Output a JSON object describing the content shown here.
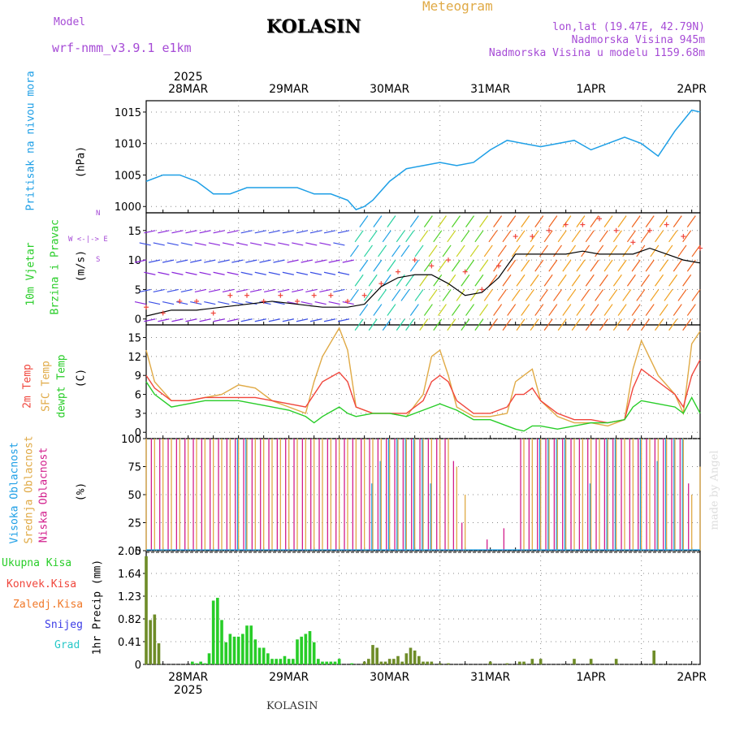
{
  "header": {
    "model_label": "Model",
    "model_name": "wrf-nmm_v3.9.1 e1km",
    "title": "KOLASIN",
    "meteogram_label": "Meteogram",
    "location": "lon,lat (19.47E, 42.79N)",
    "elevation": "Nadmorska Visina 945m",
    "model_elevation": "Nadmorska Visina u modelu 1159.68m",
    "bottom_title": "KOLASIN",
    "watermark": "made by Angel"
  },
  "colors": {
    "pressure": "#1e9fe6",
    "temp2m": "#f0463c",
    "sfc_temp": "#e0aa46",
    "dewpt": "#28cd28",
    "high_cloud": "#1e9fe6",
    "mid_cloud": "#e0aa46",
    "low_cloud": "#d21e8c",
    "total_precip": "#28cd28",
    "conv_precip": "#f0463c",
    "frz_precip": "#f07828",
    "snow": "#3c3ce6",
    "graupel": "#28c8c8",
    "gust": "#f0463c",
    "wind_speed_line": "#000000",
    "label_purple": "#a64bd6"
  },
  "time_axis": {
    "top_year": "2025",
    "bottom_year": "2025",
    "days": [
      "28MAR",
      "29MAR",
      "30MAR",
      "31MAR",
      "1APR",
      "2APR"
    ],
    "start_hour": 14,
    "end_hour": 146
  },
  "labels": {
    "pressure": [
      "Pritisak na nivou mora",
      "(hPa)"
    ],
    "wind": [
      "10m Vjetar",
      "Brzina i Pravac",
      "(m/s)"
    ],
    "wind_compass": [
      "N",
      "W <-|-> E",
      "S"
    ],
    "temp": [
      "2m Temp",
      "SFC Temp",
      "dewpt Temp",
      "(C)"
    ],
    "cloud": [
      "Visoka Oblacnost",
      "Srednja Oblacnost",
      "Niska Oblacnost",
      "(%)"
    ],
    "precip_unit": "1hr Precip (mm)",
    "precip_legend": [
      "Ukupna Kisa",
      "Konvek.Kisa",
      "Zaledj.Kisa",
      "Snijeg",
      "Grad"
    ]
  },
  "chart_data": [
    {
      "type": "line",
      "name": "pressure",
      "ylabel": "Pritisak na nivou mora (hPa)",
      "ylim": [
        999,
        1016.8
      ],
      "yticks": [
        1000,
        1005,
        1010,
        1015
      ],
      "grid": true,
      "series": [
        {
          "name": "Pritisak na nivou mora",
          "x": [
            14,
            18,
            22,
            26,
            30,
            34,
            38,
            42,
            46,
            50,
            54,
            58,
            62,
            64,
            66,
            68,
            72,
            76,
            80,
            84,
            88,
            92,
            96,
            100,
            104,
            108,
            112,
            116,
            120,
            124,
            128,
            132,
            136,
            140,
            144,
            146
          ],
          "values": [
            1004,
            1005,
            1005,
            1004,
            1002,
            1002,
            1003,
            1003,
            1003,
            1003,
            1002,
            1002,
            1001,
            999.5,
            1000,
            1001,
            1004,
            1006,
            1006.5,
            1007,
            1006.5,
            1007,
            1009,
            1010.5,
            1010,
            1009.5,
            1010,
            1010.5,
            1009,
            1010,
            1011,
            1010,
            1008,
            1012,
            1015.3,
            1015
          ]
        }
      ]
    },
    {
      "type": "line",
      "name": "wind",
      "ylabel": "10m Vjetar (m/s)",
      "ylim": [
        -1,
        18
      ],
      "yticks": [
        0,
        5,
        10,
        15
      ],
      "grid": true,
      "series": [
        {
          "name": "speed",
          "x": [
            14,
            20,
            26,
            32,
            38,
            44,
            50,
            56,
            62,
            66,
            70,
            74,
            78,
            82,
            86,
            90,
            94,
            98,
            102,
            106,
            110,
            114,
            118,
            122,
            126,
            130,
            134,
            138,
            142,
            146
          ],
          "values": [
            0.5,
            1.5,
            1.5,
            2,
            2.5,
            3,
            2.5,
            2,
            2,
            2.5,
            5.5,
            7,
            7.5,
            7.5,
            6,
            4,
            4.5,
            7,
            11,
            11,
            11,
            11,
            11.5,
            11,
            11,
            11,
            12,
            11,
            10,
            9.5
          ]
        },
        {
          "name": "gust",
          "x": [
            14,
            18,
            22,
            26,
            30,
            34,
            38,
            42,
            46,
            50,
            54,
            58,
            62,
            66,
            70,
            74,
            78,
            82,
            86,
            90,
            94,
            98,
            102,
            106,
            110,
            114,
            118,
            122,
            126,
            130,
            134,
            138,
            142,
            146
          ],
          "values": [
            2,
            1,
            3,
            3,
            1,
            4,
            4,
            3,
            4,
            3,
            4,
            4,
            3,
            4,
            6,
            8,
            10,
            9,
            10,
            8,
            5,
            9,
            14,
            14,
            15,
            16,
            16,
            17,
            15,
            13,
            15,
            16,
            14,
            12
          ]
        }
      ]
    },
    {
      "type": "line",
      "name": "temperature",
      "ylabel": "Temp (C)",
      "ylim": [
        -1,
        17
      ],
      "yticks": [
        0,
        3,
        6,
        9,
        12,
        15
      ],
      "grid": true,
      "series": [
        {
          "name": "2m Temp",
          "x": [
            14,
            16,
            20,
            24,
            28,
            32,
            36,
            40,
            44,
            48,
            52,
            54,
            56,
            60,
            62,
            64,
            68,
            72,
            76,
            80,
            82,
            84,
            86,
            88,
            92,
            96,
            100,
            102,
            104,
            106,
            108,
            112,
            116,
            120,
            124,
            128,
            130,
            132,
            136,
            140,
            142,
            144,
            146
          ],
          "values": [
            9,
            7,
            5,
            5,
            5.5,
            5.5,
            5.5,
            5.5,
            5,
            4.5,
            4,
            6,
            8,
            9.5,
            8,
            4,
            3,
            3,
            3,
            5,
            8,
            9,
            8,
            5,
            3,
            3,
            4,
            6,
            6,
            7,
            5,
            3,
            2,
            2,
            1.5,
            2,
            7,
            10,
            8,
            6,
            4,
            9,
            11.5
          ]
        },
        {
          "name": "SFC Temp",
          "x": [
            14,
            16,
            20,
            24,
            28,
            32,
            36,
            40,
            44,
            48,
            52,
            54,
            56,
            60,
            62,
            64,
            68,
            72,
            76,
            80,
            82,
            84,
            86,
            88,
            92,
            96,
            100,
            102,
            104,
            106,
            108,
            112,
            116,
            120,
            124,
            128,
            130,
            132,
            136,
            140,
            142,
            144,
            146
          ],
          "values": [
            13,
            8,
            5,
            5,
            5.5,
            6,
            7.5,
            7,
            5,
            4,
            3,
            8,
            12,
            16.5,
            13,
            4,
            3,
            3,
            2.5,
            6,
            12,
            13,
            9,
            4,
            2.5,
            2.5,
            3,
            8,
            9,
            10,
            5,
            2.5,
            1.5,
            1.5,
            1,
            2,
            10,
            14.5,
            9,
            6,
            3,
            14,
            16
          ]
        },
        {
          "name": "dewpt Temp",
          "x": [
            14,
            16,
            20,
            24,
            28,
            32,
            36,
            40,
            44,
            48,
            52,
            54,
            56,
            60,
            62,
            64,
            68,
            72,
            76,
            80,
            82,
            84,
            86,
            88,
            92,
            96,
            100,
            102,
            104,
            106,
            108,
            112,
            116,
            120,
            124,
            128,
            130,
            132,
            136,
            140,
            142,
            144,
            146
          ],
          "values": [
            8,
            6,
            4,
            4.5,
            5,
            5,
            5,
            4.5,
            4,
            3.5,
            2.5,
            1.5,
            2.5,
            4,
            3,
            2.5,
            3,
            3,
            2.5,
            3.5,
            4,
            4.5,
            4,
            3.5,
            2,
            2,
            1,
            0.5,
            0.2,
            1,
            1,
            0.5,
            1,
            1.5,
            1.5,
            2,
            4,
            5,
            4.5,
            4,
            3,
            5.5,
            3
          ]
        }
      ]
    },
    {
      "type": "bar",
      "name": "cloud",
      "ylabel": "Oblacnost (%)",
      "ylim": [
        0,
        100
      ],
      "yticks": [
        0,
        25,
        50,
        75,
        100
      ],
      "grid": true,
      "series": [
        {
          "name": "Visoka Oblacnost",
          "x": [
            36,
            38,
            68,
            70,
            72,
            74,
            76,
            78,
            80,
            82,
            108,
            110,
            112,
            114,
            120,
            124,
            126,
            132,
            136,
            138,
            140,
            142
          ],
          "values": [
            100,
            100,
            60,
            80,
            100,
            100,
            100,
            100,
            100,
            60,
            100,
            100,
            100,
            100,
            60,
            100,
            100,
            100,
            80,
            100,
            100,
            100
          ]
        },
        {
          "name": "Srednja Oblacnost",
          "x": [
            14,
            16,
            18,
            20,
            22,
            24,
            26,
            28,
            30,
            32,
            34,
            36,
            38,
            40,
            42,
            44,
            46,
            48,
            50,
            52,
            54,
            56,
            58,
            60,
            62,
            64,
            66,
            68,
            70,
            72,
            74,
            76,
            78,
            80,
            82,
            84,
            86,
            88,
            90,
            104,
            106,
            108,
            110,
            112,
            114,
            116,
            118,
            120,
            122,
            124,
            126,
            128,
            130,
            132,
            134,
            136,
            138,
            140,
            142,
            144,
            146
          ],
          "values": [
            100,
            100,
            100,
            100,
            100,
            100,
            100,
            100,
            100,
            100,
            100,
            100,
            100,
            100,
            100,
            100,
            100,
            100,
            100,
            100,
            100,
            100,
            100,
            100,
            100,
            100,
            100,
            100,
            100,
            100,
            100,
            100,
            100,
            100,
            100,
            100,
            100,
            75,
            50,
            100,
            100,
            100,
            100,
            100,
            100,
            100,
            100,
            100,
            100,
            100,
            100,
            100,
            100,
            100,
            100,
            100,
            100,
            100,
            100,
            50,
            75
          ]
        },
        {
          "name": "Niska Oblacnost",
          "x": [
            15,
            17,
            19,
            21,
            23,
            25,
            27,
            29,
            31,
            33,
            35,
            37,
            39,
            41,
            43,
            45,
            47,
            49,
            51,
            53,
            55,
            57,
            59,
            61,
            63,
            65,
            67,
            69,
            71,
            73,
            75,
            77,
            79,
            81,
            83,
            85,
            87,
            89,
            95,
            99,
            103,
            105,
            107,
            109,
            111,
            113,
            115,
            117,
            119,
            121,
            123,
            125,
            127,
            129,
            131,
            133,
            135,
            137,
            139,
            141,
            143
          ],
          "values": [
            100,
            100,
            100,
            100,
            100,
            100,
            100,
            100,
            100,
            100,
            100,
            100,
            100,
            100,
            100,
            100,
            100,
            100,
            100,
            100,
            100,
            100,
            100,
            100,
            100,
            100,
            100,
            100,
            100,
            100,
            100,
            100,
            100,
            100,
            100,
            100,
            80,
            25,
            10,
            20,
            100,
            100,
            100,
            100,
            100,
            100,
            100,
            100,
            100,
            100,
            100,
            100,
            100,
            100,
            100,
            100,
            100,
            100,
            100,
            100,
            60
          ]
        }
      ]
    },
    {
      "type": "bar",
      "name": "precipitation",
      "ylabel": "1hr Precip (mm)",
      "ylim": [
        0,
        2.05
      ],
      "yticks": [
        0,
        0.41,
        0.82,
        1.23,
        1.64,
        2.05
      ],
      "grid": true,
      "series": [
        {
          "name": "Ukupna Kisa",
          "x": [
            14,
            15,
            16,
            17,
            25,
            26,
            27,
            28,
            29,
            30,
            31,
            32,
            33,
            34,
            35,
            36,
            37,
            38,
            39,
            40,
            41,
            42,
            43,
            44,
            45,
            46,
            47,
            48,
            49,
            50,
            51,
            52,
            53,
            54,
            55,
            56,
            57,
            58,
            59,
            60,
            63,
            66,
            67,
            68,
            69,
            70,
            71,
            72,
            73,
            74,
            75,
            76,
            77,
            78,
            79,
            80,
            81,
            82,
            84,
            86,
            96,
            100,
            103,
            104,
            106,
            108,
            116,
            120,
            126,
            135
          ],
          "values": [
            1.95,
            0.8,
            0.9,
            0.38,
            0.05,
            0.02,
            0.05,
            0.02,
            0.2,
            1.15,
            1.2,
            0.8,
            0.4,
            0.55,
            0.5,
            0.5,
            0.55,
            0.7,
            0.7,
            0.45,
            0.3,
            0.3,
            0.2,
            0.1,
            0.1,
            0.1,
            0.15,
            0.1,
            0.1,
            0.45,
            0.5,
            0.55,
            0.6,
            0.4,
            0.1,
            0.05,
            0.05,
            0.05,
            0.05,
            0.1,
            0.02,
            0.05,
            0.1,
            0.35,
            0.3,
            0.05,
            0.05,
            0.1,
            0.1,
            0.15,
            0.05,
            0.2,
            0.3,
            0.25,
            0.15,
            0.05,
            0.05,
            0.05,
            0.02,
            0.02,
            0.05,
            0.02,
            0.05,
            0.05,
            0.1,
            0.1,
            0.1,
            0.1,
            0.1,
            0.25
          ]
        }
      ]
    }
  ]
}
